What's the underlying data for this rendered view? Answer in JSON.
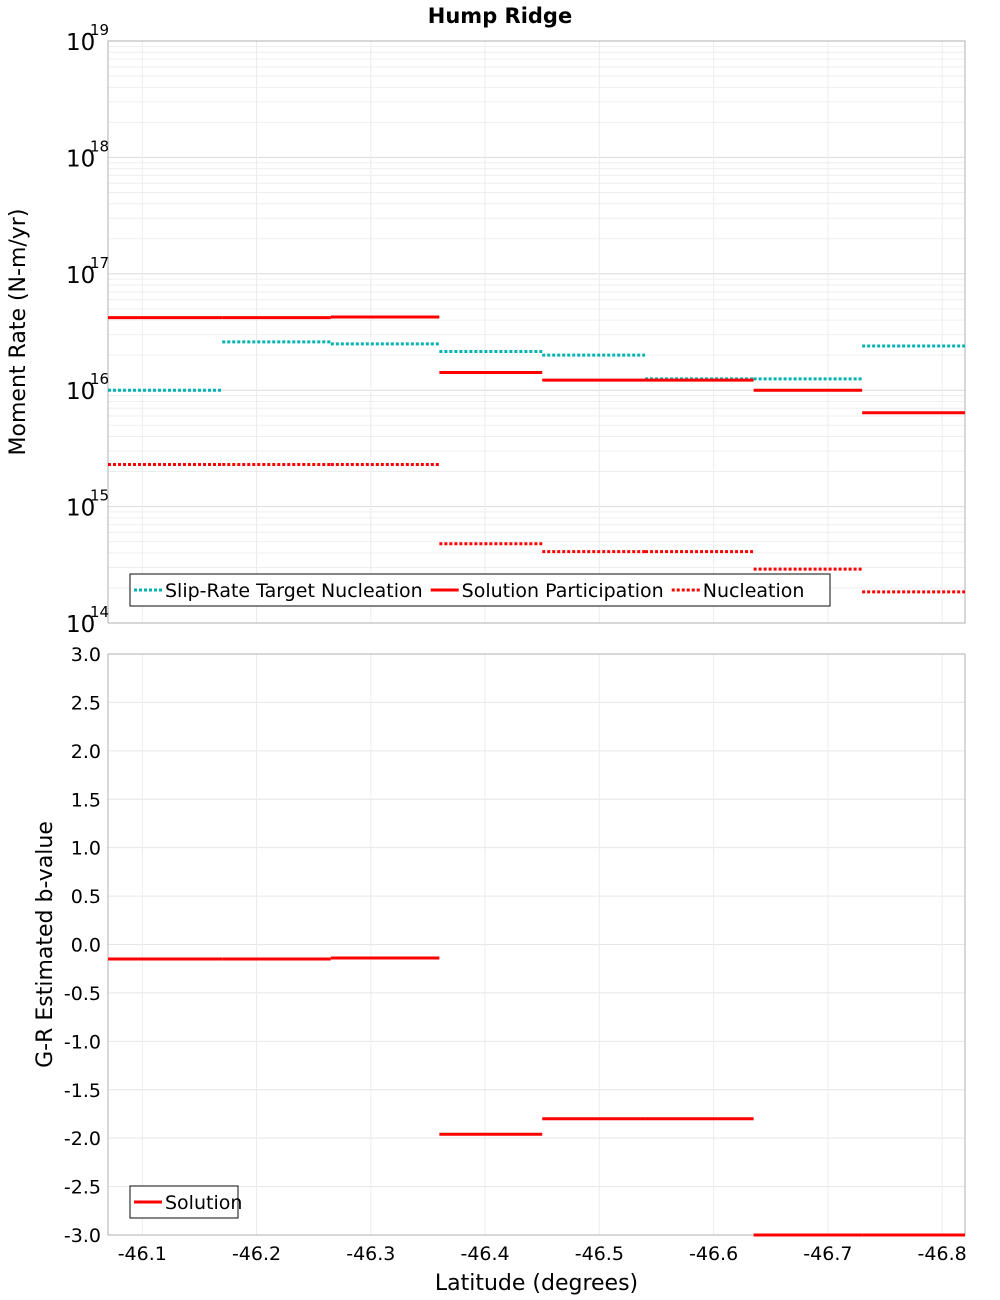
{
  "chart_data": {
    "title": "Hump Ridge",
    "x_axis": {
      "label": "Latitude (degrees)",
      "range": [
        -46.07,
        -46.82
      ],
      "ticks": [
        -46.1,
        -46.2,
        -46.3,
        -46.4,
        -46.5,
        -46.6,
        -46.7,
        -46.8
      ],
      "tick_labels": [
        "-46.1",
        "-46.2",
        "-46.3",
        "-46.4",
        "-46.5",
        "-46.6",
        "-46.7",
        "-46.8"
      ]
    },
    "panels": [
      {
        "type": "step",
        "scale": "log",
        "ylabel": "Moment Rate (N-m/yr)",
        "ylim": [
          100000000000000.0,
          1e+19
        ],
        "y_tick_bases": [
          "10",
          "10",
          "10",
          "10",
          "10",
          "10"
        ],
        "y_tick_exponents": [
          "14",
          "15",
          "16",
          "17",
          "18",
          "19"
        ],
        "legend_position": "bottom-left",
        "series": [
          {
            "name": "Slip-Rate Target Nucleation",
            "color": "#00b3b3",
            "style": "dotted",
            "segments": [
              {
                "x0": -46.07,
                "x1": -46.17,
                "y": 1e+16
              },
              {
                "x0": -46.17,
                "x1": -46.265,
                "y": 2.6e+16
              },
              {
                "x0": -46.265,
                "x1": -46.36,
                "y": 2.5e+16
              },
              {
                "x0": -46.36,
                "x1": -46.45,
                "y": 2.15e+16
              },
              {
                "x0": -46.45,
                "x1": -46.54,
                "y": 2e+16
              },
              {
                "x0": -46.54,
                "x1": -46.635,
                "y": 1.25e+16
              },
              {
                "x0": -46.635,
                "x1": -46.73,
                "y": 1.25e+16
              },
              {
                "x0": -46.73,
                "x1": -46.82,
                "y": 2.4e+16
              }
            ]
          },
          {
            "name": "Solution Participation",
            "color": "#ff0000",
            "style": "solid",
            "segments": [
              {
                "x0": -46.07,
                "x1": -46.17,
                "y": 4.2e+16
              },
              {
                "x0": -46.17,
                "x1": -46.265,
                "y": 4.2e+16
              },
              {
                "x0": -46.265,
                "x1": -46.36,
                "y": 4.25e+16
              },
              {
                "x0": -46.36,
                "x1": -46.45,
                "y": 1.42e+16
              },
              {
                "x0": -46.45,
                "x1": -46.54,
                "y": 1.22e+16
              },
              {
                "x0": -46.54,
                "x1": -46.635,
                "y": 1.22e+16
              },
              {
                "x0": -46.635,
                "x1": -46.73,
                "y": 1e+16
              },
              {
                "x0": -46.73,
                "x1": -46.82,
                "y": 6400000000000000.0
              }
            ]
          },
          {
            "name": "Nucleation",
            "color": "#ff0000",
            "style": "dotted",
            "segments": [
              {
                "x0": -46.07,
                "x1": -46.17,
                "y": 2300000000000000.0
              },
              {
                "x0": -46.17,
                "x1": -46.265,
                "y": 2300000000000000.0
              },
              {
                "x0": -46.265,
                "x1": -46.36,
                "y": 2300000000000000.0
              },
              {
                "x0": -46.36,
                "x1": -46.45,
                "y": 480000000000000.0
              },
              {
                "x0": -46.45,
                "x1": -46.54,
                "y": 410000000000000.0
              },
              {
                "x0": -46.54,
                "x1": -46.635,
                "y": 410000000000000.0
              },
              {
                "x0": -46.635,
                "x1": -46.73,
                "y": 290000000000000.0
              },
              {
                "x0": -46.73,
                "x1": -46.82,
                "y": 185000000000000.0
              }
            ]
          }
        ]
      },
      {
        "type": "step",
        "scale": "linear",
        "ylabel": "G-R Estimated b-value",
        "ylim": [
          -3.0,
          3.0
        ],
        "y_ticks": [
          3.0,
          2.5,
          2.0,
          1.5,
          1.0,
          0.5,
          0.0,
          -0.5,
          -1.0,
          -1.5,
          -2.0,
          -2.5,
          -3.0
        ],
        "y_tick_labels": [
          "3.0",
          "2.5",
          "2.0",
          "1.5",
          "1.0",
          "0.5",
          "0.0",
          "-0.5",
          "-1.0",
          "-1.5",
          "-2.0",
          "-2.5",
          "-3.0"
        ],
        "legend_position": "bottom-left",
        "series": [
          {
            "name": "Solution",
            "color": "#ff0000",
            "style": "solid",
            "segments": [
              {
                "x0": -46.07,
                "x1": -46.17,
                "y": -0.15
              },
              {
                "x0": -46.17,
                "x1": -46.265,
                "y": -0.15
              },
              {
                "x0": -46.265,
                "x1": -46.36,
                "y": -0.14
              },
              {
                "x0": -46.36,
                "x1": -46.45,
                "y": -1.96
              },
              {
                "x0": -46.45,
                "x1": -46.54,
                "y": -1.8
              },
              {
                "x0": -46.54,
                "x1": -46.635,
                "y": -1.8
              },
              {
                "x0": -46.635,
                "x1": -46.73,
                "y": -3.0
              },
              {
                "x0": -46.73,
                "x1": -46.82,
                "y": -3.0
              }
            ]
          }
        ]
      }
    ]
  }
}
